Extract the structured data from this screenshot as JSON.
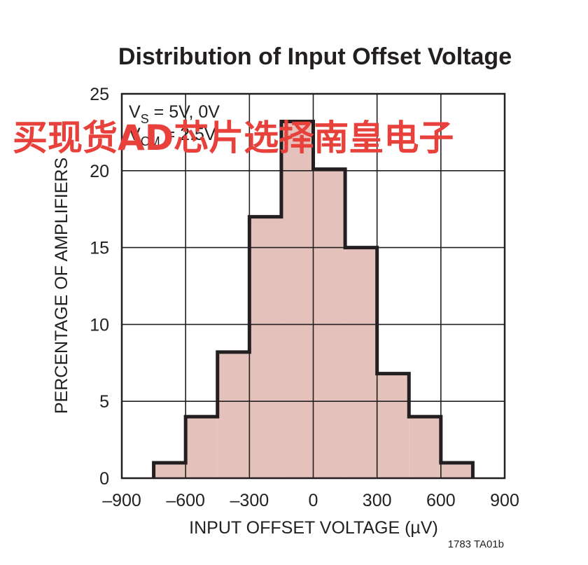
{
  "chart_data": {
    "type": "bar",
    "title": "Distribution of Input Offset Voltage",
    "xlabel": "INPUT OFFSET VOLTAGE (µV)",
    "ylabel": "PERCENTAGE OF AMPLIFIERS",
    "xlim": [
      -900,
      900
    ],
    "ylim": [
      0,
      25
    ],
    "xticks": [
      -900,
      -600,
      -300,
      0,
      300,
      600,
      900
    ],
    "xtick_labels": [
      "–900",
      "–600",
      "–300",
      "0",
      "300",
      "600",
      "900"
    ],
    "yticks": [
      0,
      5,
      10,
      15,
      20,
      25
    ],
    "ytick_labels": [
      "0",
      "5",
      "10",
      "15",
      "20",
      "25"
    ],
    "grid": true,
    "bin_width": 150,
    "bins": [
      {
        "x0": -750,
        "x1": -600,
        "value": 1
      },
      {
        "x0": -600,
        "x1": -450,
        "value": 4
      },
      {
        "x0": -450,
        "x1": -300,
        "value": 8.2
      },
      {
        "x0": -300,
        "x1": -150,
        "value": 17
      },
      {
        "x0": -150,
        "x1": 0,
        "value": 23.2
      },
      {
        "x0": 0,
        "x1": 150,
        "value": 20.1
      },
      {
        "x0": 150,
        "x1": 300,
        "value": 15
      },
      {
        "x0": 300,
        "x1": 450,
        "value": 6.8
      },
      {
        "x0": 450,
        "x1": 600,
        "value": 4
      },
      {
        "x0": 600,
        "x1": 750,
        "value": 1
      }
    ],
    "fill_color": "#e4c1bb",
    "outline_color": "#231f20",
    "annotation": {
      "line1_prefix": "V",
      "line1_sub": "S",
      "line1_suffix": " = 5V, 0V",
      "line2_prefix": "V",
      "line2_sub": "CM",
      "line2_suffix": " = 2.5V"
    }
  },
  "figure_code": "1783 TA01b",
  "watermark": "买现货AD芯片选择南皇电子",
  "watermark_color": "#e8403a"
}
